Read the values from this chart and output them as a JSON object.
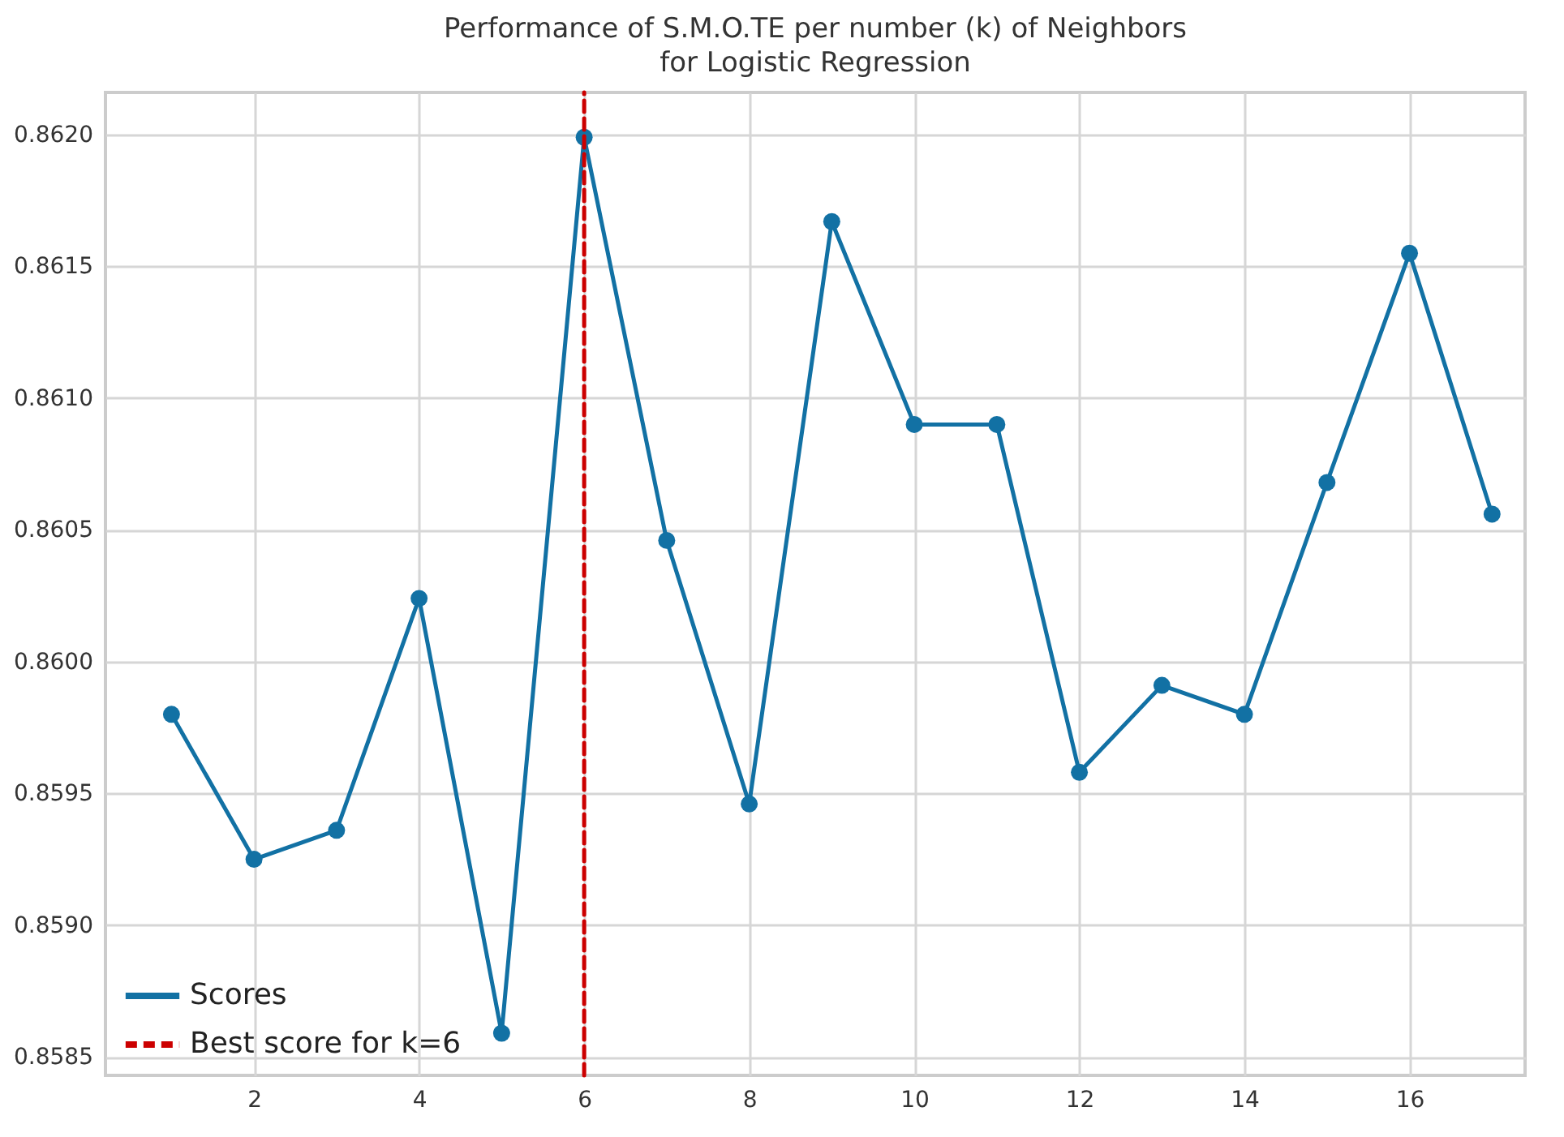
{
  "chart_data": {
    "type": "line",
    "title": [
      "Performance of S.M.O.TE per number (k) of Neighbors",
      "for Logistic Regression"
    ],
    "x": [
      1,
      2,
      3,
      4,
      5,
      6,
      7,
      8,
      9,
      10,
      11,
      12,
      13,
      14,
      15,
      16,
      17
    ],
    "series": [
      {
        "name": "Scores",
        "color": "#1271a4",
        "values": [
          0.8598,
          0.85925,
          0.85936,
          0.86024,
          0.85859,
          0.86199,
          0.86046,
          0.85946,
          0.86167,
          0.8609,
          0.8609,
          0.85958,
          0.85991,
          0.8598,
          0.86068,
          0.86155,
          0.86056
        ]
      },
      {
        "name": "Best score for k=6",
        "type": "line",
        "color": "#cc0000",
        "line_style": "dashed",
        "marker": "none",
        "x": [
          6,
          6
        ],
        "values": [
          0.85843,
          0.86216
        ]
      }
    ],
    "xlim": [
      0.2,
      17.4
    ],
    "xticks": [
      2,
      4,
      6,
      8,
      10,
      12,
      14,
      16
    ],
    "ylim": [
      0.85843,
      0.86216
    ],
    "yticks": [
      {
        "value": 0.8585,
        "label": "0.8585"
      },
      {
        "value": 0.859,
        "label": "0.8590"
      },
      {
        "value": 0.8595,
        "label": "0.8595"
      },
      {
        "value": 0.86,
        "label": "0.8600"
      },
      {
        "value": 0.8605,
        "label": "0.8605"
      },
      {
        "value": 0.861,
        "label": "0.8610"
      },
      {
        "value": 0.8615,
        "label": "0.8615"
      },
      {
        "value": 0.862,
        "label": "0.8620"
      }
    ],
    "grid": true,
    "legend": "bottom left",
    "marker": "circle",
    "line_style": "solid"
  }
}
